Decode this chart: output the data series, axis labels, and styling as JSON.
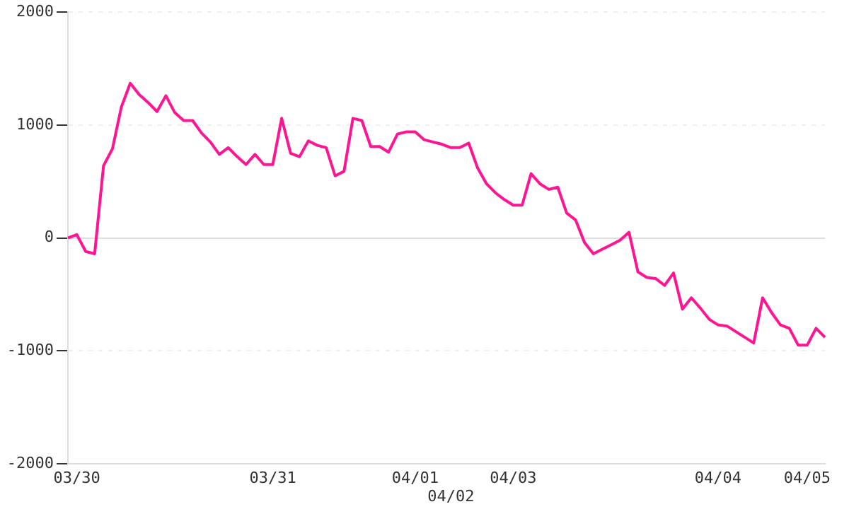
{
  "chart_data": {
    "type": "line",
    "categories": [
      null,
      "03/30",
      null,
      null,
      null,
      null,
      null,
      null,
      null,
      null,
      null,
      null,
      null,
      null,
      null,
      null,
      null,
      null,
      null,
      null,
      null,
      null,
      null,
      "03/31",
      null,
      null,
      null,
      null,
      null,
      null,
      null,
      null,
      null,
      null,
      null,
      null,
      null,
      null,
      null,
      "04/01",
      null,
      null,
      null,
      "04/02",
      null,
      null,
      null,
      null,
      null,
      null,
      "04/03",
      null,
      null,
      null,
      null,
      null,
      null,
      null,
      null,
      null,
      null,
      null,
      null,
      null,
      null,
      null,
      null,
      null,
      null,
      null,
      null,
      null,
      null,
      "04/04",
      null,
      null,
      null,
      null,
      null,
      null,
      null,
      null,
      null,
      "04/05",
      null,
      null
    ],
    "series": [
      {
        "color": "#ff1493",
        "values": [
          0,
          30,
          -120,
          -140,
          640,
          790,
          1160,
          1370,
          1270,
          1200,
          1120,
          1260,
          1110,
          1040,
          1040,
          930,
          850,
          740,
          800,
          720,
          650,
          740,
          650,
          650,
          1060,
          750,
          720,
          860,
          820,
          800,
          550,
          590,
          1060,
          1040,
          810,
          810,
          760,
          920,
          940,
          940,
          870,
          850,
          830,
          800,
          800,
          840,
          620,
          480,
          400,
          340,
          290,
          290,
          570,
          480,
          430,
          450,
          220,
          160,
          -40,
          -140,
          -100,
          -60,
          -20,
          50,
          -300,
          -350,
          -360,
          -420,
          -310,
          -630,
          -530,
          -620,
          -720,
          -770,
          -780,
          -830,
          -880,
          -930,
          -530,
          -660,
          -770,
          -800,
          -950,
          -950,
          -800,
          -880
        ]
      }
    ],
    "ylim": [
      -2000,
      2000
    ],
    "yticks": [
      -2000,
      -1000,
      0,
      1000,
      2000
    ],
    "grid": "y",
    "legend": false,
    "marker": "none",
    "line_style": "solid"
  }
}
